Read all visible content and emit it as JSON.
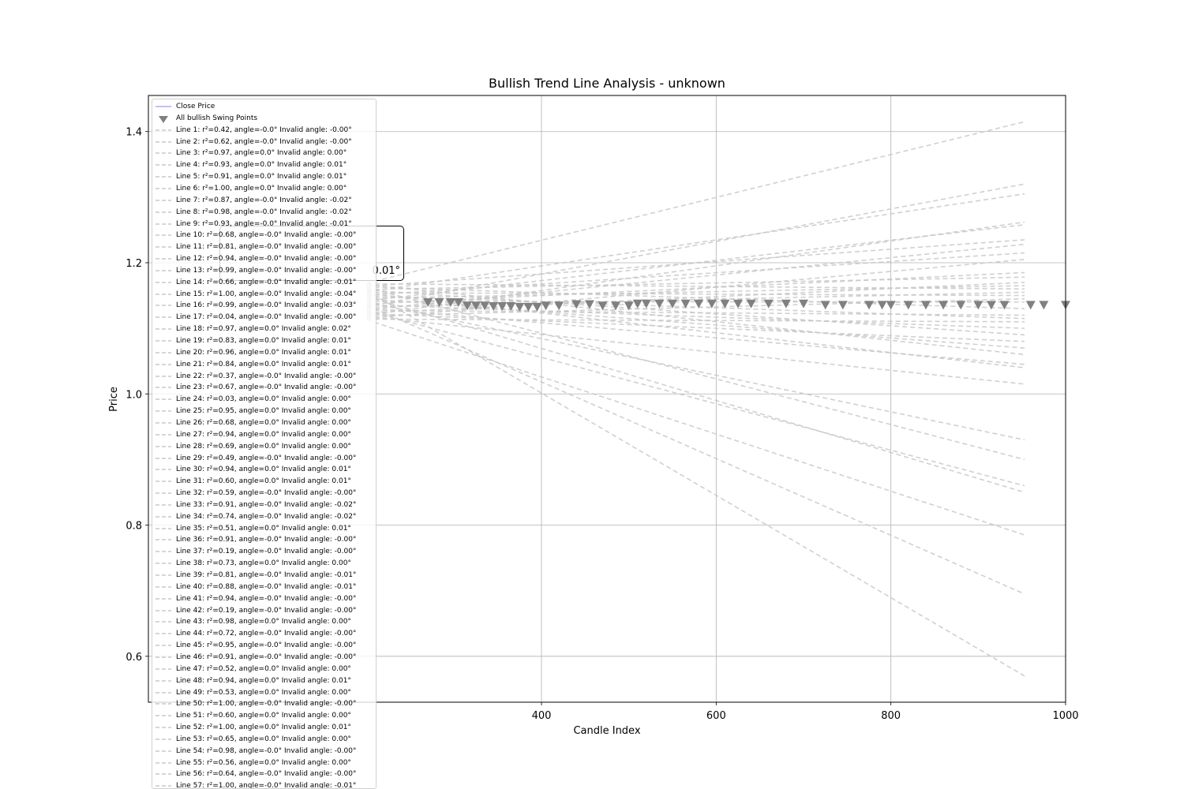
{
  "chart_data": {
    "type": "line",
    "title": "Bullish Trend Line Analysis - unknown",
    "xlabel": "Candle Index",
    "ylabel": "Price",
    "xlim": [
      -50,
      1000
    ],
    "ylim": [
      0.53,
      1.455
    ],
    "xticks": [
      400,
      600,
      800,
      1000
    ],
    "yticks": [
      0.6,
      0.8,
      1.0,
      1.2,
      1.4
    ],
    "ytick_labels": [
      "0.6",
      "0.8",
      "1.0",
      "1.2",
      "1.4"
    ],
    "grid": true,
    "legend_position": "upper-left",
    "colors": {
      "close": "#9999ff",
      "swing": "#808080",
      "trend": "#c8c8c8",
      "grid": "#b0b0b0"
    },
    "series": [
      {
        "name": "Close Price",
        "values": []
      },
      {
        "name": "All bullish Swing Points",
        "x": [
          270,
          283,
          296,
          305,
          315,
          325,
          335,
          345,
          355,
          365,
          375,
          385,
          395,
          405,
          420,
          440,
          455,
          470,
          485,
          500,
          510,
          520,
          535,
          550,
          565,
          580,
          595,
          610,
          625,
          640,
          660,
          680,
          700,
          725,
          745,
          775,
          790,
          800,
          820,
          840,
          860,
          880,
          900,
          915,
          930,
          960,
          975,
          1000
        ],
        "values": [
          1.141,
          1.141,
          1.141,
          1.141,
          1.136,
          1.136,
          1.136,
          1.135,
          1.135,
          1.135,
          1.134,
          1.134,
          1.134,
          1.136,
          1.136,
          1.138,
          1.138,
          1.136,
          1.136,
          1.136,
          1.139,
          1.139,
          1.139,
          1.139,
          1.139,
          1.139,
          1.139,
          1.139,
          1.139,
          1.139,
          1.139,
          1.139,
          1.139,
          1.137,
          1.137,
          1.137,
          1.137,
          1.137,
          1.137,
          1.137,
          1.137,
          1.137,
          1.137,
          1.137,
          1.137,
          1.137,
          1.137,
          1.137
        ]
      }
    ],
    "trend_end_values": [
      1.415,
      1.32,
      1.305,
      1.262,
      1.258,
      1.235,
      1.228,
      1.215,
      1.205,
      1.185,
      1.178,
      1.17,
      1.165,
      1.16,
      1.155,
      1.15,
      1.145,
      1.14,
      1.13,
      1.12,
      1.115,
      1.11,
      1.1,
      1.09,
      1.08,
      1.07,
      1.06,
      1.045,
      1.04,
      1.015,
      0.93,
      0.9,
      0.86,
      0.85,
      0.785,
      0.695,
      0.57
    ],
    "annotation": "0.01°"
  },
  "legend": [
    "Close Price",
    "All bullish Swing Points",
    "Line 1: r²=0.42, angle=-0.0° Invalid angle: -0.00°",
    "Line 2: r²=0.62, angle=-0.0° Invalid angle: -0.00°",
    "Line 3: r²=0.97, angle=0.0° Invalid angle: 0.00°",
    "Line 4: r²=0.93, angle=0.0° Invalid angle: 0.01°",
    "Line 5: r²=0.91, angle=0.0° Invalid angle: 0.01°",
    "Line 6: r²=1.00, angle=0.0° Invalid angle: 0.00°",
    "Line 7: r²=0.87, angle=-0.0° Invalid angle: -0.02°",
    "Line 8: r²=0.98, angle=-0.0° Invalid angle: -0.02°",
    "Line 9: r²=0.93, angle=-0.0° Invalid angle: -0.01°",
    "Line 10: r²=0.68, angle=-0.0° Invalid angle: -0.00°",
    "Line 11: r²=0.81, angle=-0.0° Invalid angle: -0.00°",
    "Line 12: r²=0.94, angle=-0.0° Invalid angle: -0.00°",
    "Line 13: r²=0.99, angle=-0.0° Invalid angle: -0.00°",
    "Line 14: r²=0.66, angle=-0.0° Invalid angle: -0.01°",
    "Line 15: r²=1.00, angle=-0.0° Invalid angle: -0.04°",
    "Line 16: r²=0.99, angle=-0.0° Invalid angle: -0.03°",
    "Line 17: r²=0.04, angle=-0.0° Invalid angle: -0.00°",
    "Line 18: r²=0.97, angle=0.0° Invalid angle: 0.02°",
    "Line 19: r²=0.83, angle=0.0° Invalid angle: 0.01°",
    "Line 20: r²=0.96, angle=0.0° Invalid angle: 0.01°",
    "Line 21: r²=0.84, angle=0.0° Invalid angle: 0.01°",
    "Line 22: r²=0.37, angle=-0.0° Invalid angle: -0.00°",
    "Line 23: r²=0.67, angle=-0.0° Invalid angle: -0.00°",
    "Line 24: r²=0.03, angle=0.0° Invalid angle: 0.00°",
    "Line 25: r²=0.95, angle=0.0° Invalid angle: 0.00°",
    "Line 26: r²=0.68, angle=0.0° Invalid angle: 0.00°",
    "Line 27: r²=0.94, angle=0.0° Invalid angle: 0.00°",
    "Line 28: r²=0.69, angle=0.0° Invalid angle: 0.00°",
    "Line 29: r²=0.49, angle=-0.0° Invalid angle: -0.00°",
    "Line 30: r²=0.94, angle=0.0° Invalid angle: 0.01°",
    "Line 31: r²=0.60, angle=0.0° Invalid angle: 0.01°",
    "Line 32: r²=0.59, angle=-0.0° Invalid angle: -0.00°",
    "Line 33: r²=0.91, angle=-0.0° Invalid angle: -0.02°",
    "Line 34: r²=0.74, angle=-0.0° Invalid angle: -0.02°",
    "Line 35: r²=0.51, angle=0.0° Invalid angle: 0.01°",
    "Line 36: r²=0.91, angle=-0.0° Invalid angle: -0.00°",
    "Line 37: r²=0.19, angle=-0.0° Invalid angle: -0.00°",
    "Line 38: r²=0.73, angle=0.0° Invalid angle: 0.00°",
    "Line 39: r²=0.81, angle=-0.0° Invalid angle: -0.01°",
    "Line 40: r²=0.88, angle=-0.0° Invalid angle: -0.01°",
    "Line 41: r²=0.94, angle=-0.0° Invalid angle: -0.00°",
    "Line 42: r²=0.19, angle=-0.0° Invalid angle: -0.00°",
    "Line 43: r²=0.98, angle=0.0° Invalid angle: 0.00°",
    "Line 44: r²=0.72, angle=-0.0° Invalid angle: -0.00°",
    "Line 45: r²=0.95, angle=-0.0° Invalid angle: -0.00°",
    "Line 46: r²=0.91, angle=-0.0° Invalid angle: -0.00°",
    "Line 47: r²=0.52, angle=0.0° Invalid angle: 0.00°",
    "Line 48: r²=0.94, angle=0.0° Invalid angle: 0.01°",
    "Line 49: r²=0.53, angle=0.0° Invalid angle: 0.00°",
    "Line 50: r²=1.00, angle=-0.0° Invalid angle: -0.00°",
    "Line 51: r²=0.60, angle=0.0° Invalid angle: 0.00°",
    "Line 52: r²=1.00, angle=0.0° Invalid angle: 0.01°",
    "Line 53: r²=0.65, angle=0.0° Invalid angle: 0.00°",
    "Line 54: r²=0.98, angle=-0.0° Invalid angle: -0.00°",
    "Line 55: r²=0.56, angle=0.0° Invalid angle: 0.00°",
    "Line 56: r²=0.64, angle=-0.0° Invalid angle: -0.00°",
    "Line 57: r²=1.00, angle=-0.0° Invalid angle: -0.01°"
  ]
}
